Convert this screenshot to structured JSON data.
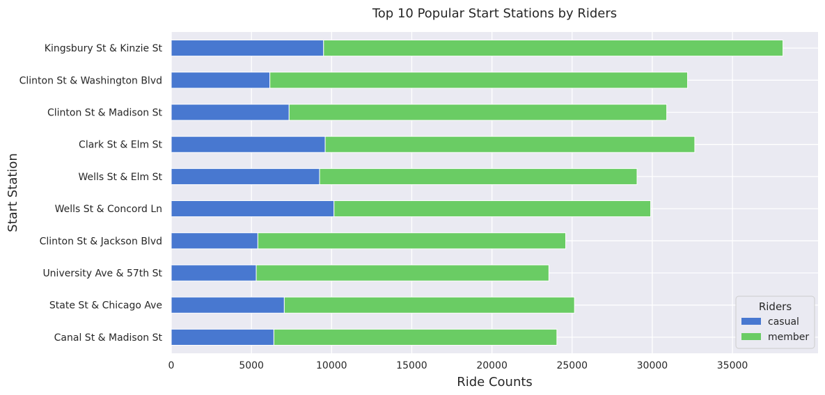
{
  "chart_data": {
    "type": "bar",
    "orientation": "horizontal",
    "stacked": true,
    "title": "Top 10 Popular Start Stations by Riders",
    "xlabel": "Ride Counts",
    "ylabel": "Start Station",
    "xlim": [
      0,
      40000
    ],
    "xticks": [
      0,
      5000,
      10000,
      15000,
      20000,
      25000,
      30000,
      35000
    ],
    "grid": true,
    "legend_position": "bottom-right",
    "legend_title": "Riders",
    "categories": [
      "Kingsbury St & Kinzie St",
      "Clinton St & Washington Blvd",
      "Clinton St & Madison St",
      "Clark St & Elm St",
      "Wells St & Elm St",
      "Wells St & Concord Ln",
      "Clinton St & Jackson Blvd",
      "University Ave & 57th St",
      "State St & Chicago Ave",
      "Canal St & Madison St"
    ],
    "series": [
      {
        "name": "casual",
        "color": "#4878d0",
        "values": [
          9500,
          6150,
          7350,
          9600,
          9250,
          10150,
          5400,
          5300,
          7050,
          6400
        ]
      },
      {
        "name": "member",
        "color": "#6acc64",
        "values": [
          28650,
          26050,
          23550,
          23050,
          19800,
          19750,
          19200,
          18250,
          18100,
          17650
        ]
      }
    ],
    "background_color": "#eaeaf2",
    "grid_color": "#ffffff"
  }
}
